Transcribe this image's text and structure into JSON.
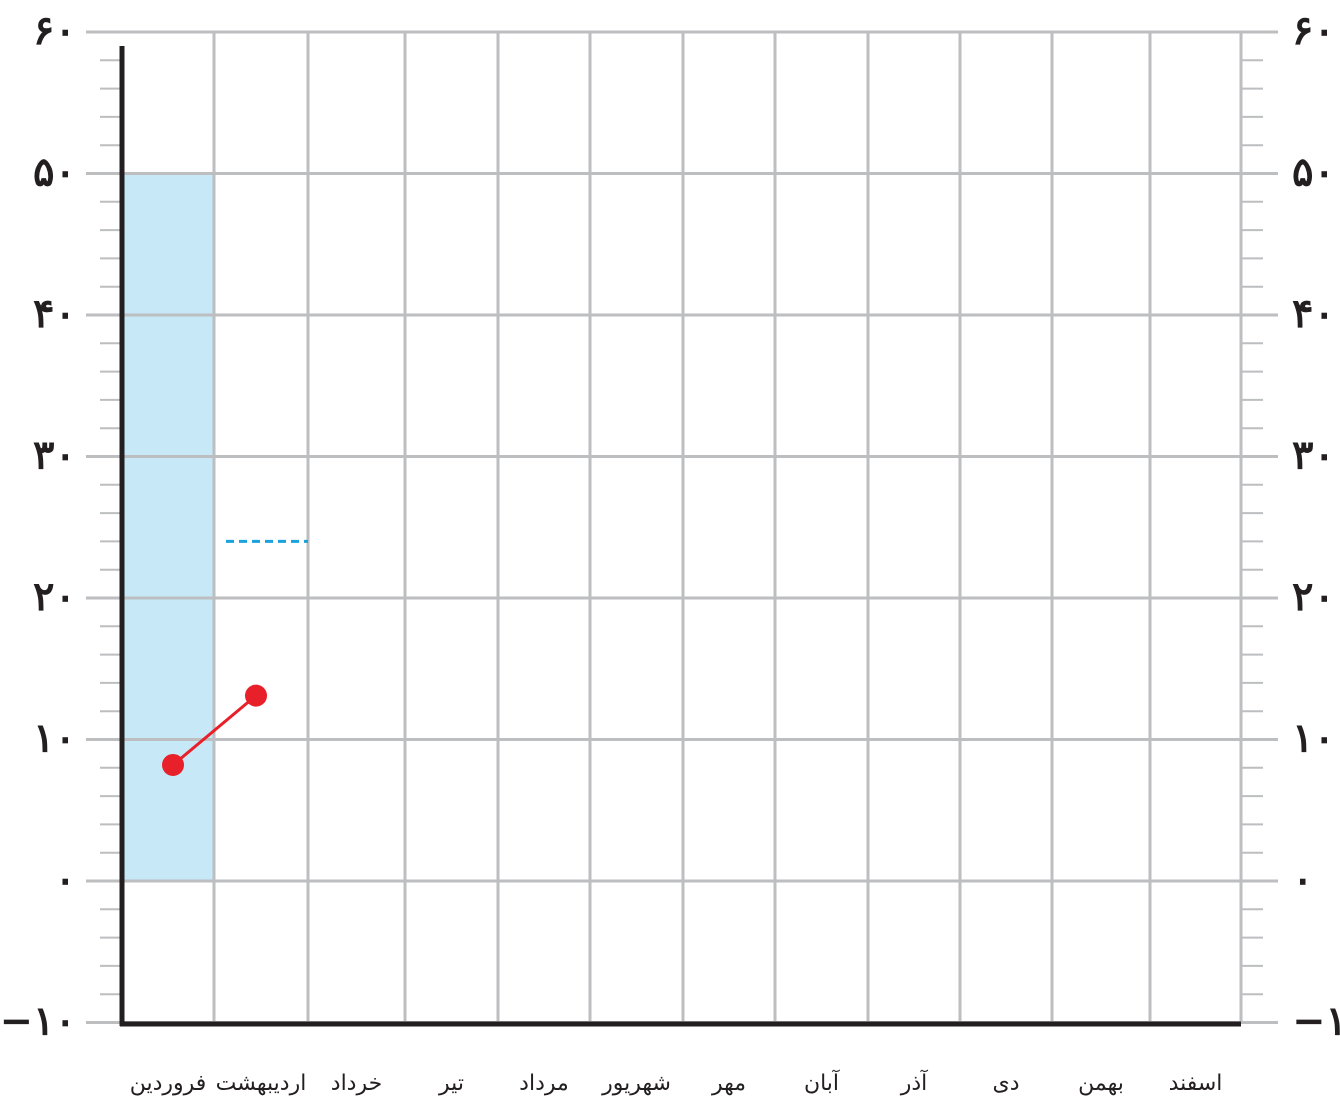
{
  "chart_data": {
    "type": "line",
    "categories": [
      "فروردین",
      "اردیبهشت",
      "خرداد",
      "تیر",
      "مرداد",
      "شهریور",
      "مهر",
      "آبان",
      "آذر",
      "دی",
      "بهمن",
      "اسفند"
    ],
    "y_tick_labels": [
      "−۱۰",
      "۰",
      "۱۰",
      "۲۰",
      "۳۰",
      "۴۰",
      "۵۰",
      "۶۰"
    ],
    "y_tick_values": [
      -10,
      0,
      10,
      20,
      30,
      40,
      50,
      60
    ],
    "ylim": [
      -10,
      60
    ],
    "minor_step": 2,
    "grid": true,
    "axes_on_both_sides": true,
    "series": [
      {
        "type": "line",
        "color": "#e8202a",
        "points": [
          {
            "category": "فروردین",
            "y": 8.2
          },
          {
            "category": "اردیبهشت",
            "y": 13.1
          }
        ]
      }
    ],
    "highlight_bar": {
      "category": "فروردین",
      "from": 0,
      "to": 50,
      "color": "#c6e8f7"
    },
    "dashed_marker": {
      "category": "اردیبهشت",
      "y": 24,
      "color": "#1ba2dd"
    },
    "xlabel": "",
    "ylabel": "",
    "title": ""
  },
  "colors": {
    "grid": "#bcbec0",
    "axis": "#231f20",
    "text": "#231f20"
  }
}
